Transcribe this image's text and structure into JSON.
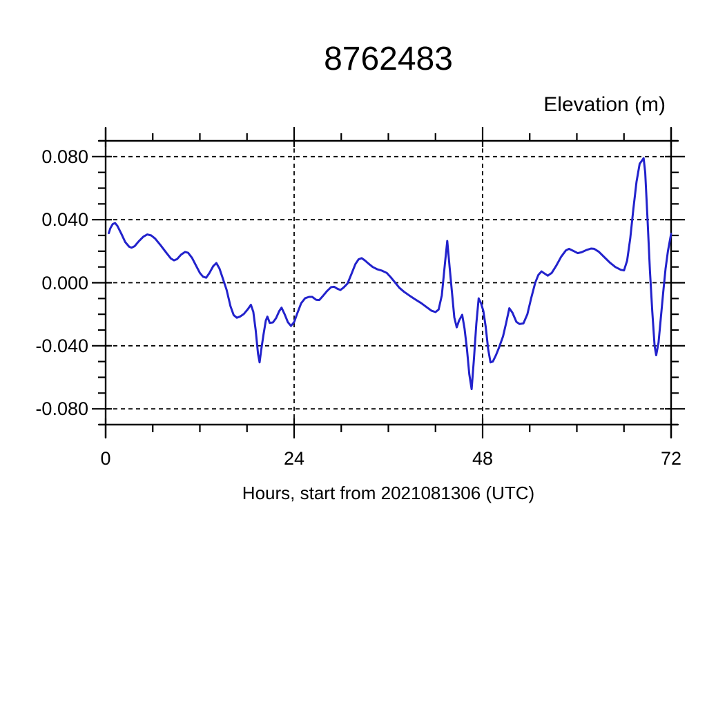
{
  "page": {
    "background_color": "#ffffff"
  },
  "chart": {
    "title": "8762483",
    "unit_label": "Elevation (m)",
    "xlabel": "Hours, start from 2021081306 (UTC)",
    "line_color": "#2222cc",
    "axis_color": "#000000",
    "xtick_labels": [
      "0",
      "24",
      "48",
      "72"
    ],
    "ytick_labels": [
      "0.080",
      "0.040",
      "0.000",
      "-0.040",
      "-0.080"
    ]
  },
  "chart_data": {
    "type": "line",
    "title": "8762483",
    "xlabel": "Hours, start from 2021081306 (UTC)",
    "ylabel": "Elevation (m)",
    "xlim": [
      0,
      72
    ],
    "ylim": [
      -0.09,
      0.09
    ],
    "xticks_major": [
      0,
      24,
      48,
      72
    ],
    "xtick_minor_interval": 6,
    "yticks_major": [
      0.08,
      0.04,
      0,
      -0.04,
      -0.08
    ],
    "ytick_minor_interval": 0.01,
    "grid": "dashed-at-major-ticks",
    "legend": "none",
    "series": [
      {
        "name": "elevation",
        "color": "#2222cc",
        "x": [
          0.4,
          0.6,
          0.9,
          1.2,
          1.5,
          2.0,
          2.5,
          3.0,
          3.3,
          3.7,
          4.2,
          4.8,
          5.3,
          5.8,
          6.3,
          7.0,
          7.7,
          8.3,
          8.7,
          9.1,
          9.6,
          10.1,
          10.5,
          11.0,
          11.5,
          12.0,
          12.4,
          12.8,
          13.2,
          13.7,
          14.1,
          14.5,
          14.9,
          15.4,
          15.9,
          16.3,
          16.7,
          17.1,
          17.6,
          18.1,
          18.5,
          18.8,
          19.1,
          19.4,
          19.6,
          19.8,
          20.1,
          20.4,
          20.6,
          20.9,
          21.3,
          21.7,
          22.1,
          22.4,
          22.8,
          23.2,
          23.6,
          24.0,
          24.4,
          24.9,
          25.4,
          25.9,
          26.3,
          26.8,
          27.2,
          27.7,
          28.2,
          28.7,
          29.1,
          29.5,
          29.9,
          30.3,
          30.8,
          31.3,
          31.8,
          32.2,
          32.6,
          33.0,
          33.5,
          34.0,
          34.6,
          35.2,
          35.8,
          36.3,
          36.8,
          37.4,
          38.0,
          38.7,
          39.4,
          40.2,
          40.9,
          41.5,
          42.0,
          42.4,
          42.8,
          43.2,
          43.5,
          43.8,
          44.1,
          44.4,
          44.7,
          45.0,
          45.4,
          45.7,
          46.0,
          46.3,
          46.6,
          46.9,
          47.2,
          47.5,
          47.8,
          48.1,
          48.4,
          48.7,
          49.0,
          49.3,
          49.7,
          50.1,
          50.6,
          51.0,
          51.4,
          51.8,
          52.3,
          52.7,
          53.2,
          53.7,
          54.2,
          54.7,
          55.1,
          55.5,
          55.9,
          56.3,
          56.8,
          57.4,
          58.0,
          58.6,
          59.0,
          59.5,
          60.1,
          60.6,
          61.2,
          61.8,
          62.2,
          62.8,
          63.5,
          64.2,
          64.9,
          65.6,
          66.0,
          66.4,
          66.8,
          67.2,
          67.6,
          68.0,
          68.3,
          68.5,
          68.7,
          69.0,
          69.3,
          69.6,
          69.9,
          70.1,
          70.4,
          70.7,
          71.0,
          71.3,
          71.6,
          72.0
        ],
        "y": [
          0.0315,
          0.0345,
          0.0372,
          0.0379,
          0.036,
          0.031,
          0.0258,
          0.0228,
          0.0222,
          0.0232,
          0.0262,
          0.0292,
          0.0306,
          0.03,
          0.028,
          0.0238,
          0.0192,
          0.0154,
          0.0142,
          0.015,
          0.0178,
          0.0195,
          0.019,
          0.0158,
          0.011,
          0.0062,
          0.0038,
          0.0032,
          0.006,
          0.0105,
          0.0125,
          0.009,
          0.003,
          -0.0045,
          -0.015,
          -0.0205,
          -0.0222,
          -0.0215,
          -0.0198,
          -0.0168,
          -0.014,
          -0.0185,
          -0.03,
          -0.045,
          -0.0505,
          -0.043,
          -0.033,
          -0.024,
          -0.0215,
          -0.0255,
          -0.0252,
          -0.0225,
          -0.018,
          -0.0158,
          -0.02,
          -0.025,
          -0.0274,
          -0.025,
          -0.0195,
          -0.013,
          -0.0098,
          -0.009,
          -0.009,
          -0.0108,
          -0.011,
          -0.0082,
          -0.0052,
          -0.0028,
          -0.0026,
          -0.0038,
          -0.0046,
          -0.003,
          -0.0005,
          0.0055,
          0.0118,
          0.0148,
          0.0156,
          0.0142,
          0.012,
          0.01,
          0.0085,
          0.0076,
          0.0062,
          0.0035,
          0.0005,
          -0.0032,
          -0.0058,
          -0.0082,
          -0.0105,
          -0.013,
          -0.0156,
          -0.0178,
          -0.0186,
          -0.017,
          -0.008,
          0.012,
          0.0265,
          0.01,
          -0.006,
          -0.022,
          -0.0283,
          -0.024,
          -0.0203,
          -0.029,
          -0.042,
          -0.058,
          -0.0675,
          -0.048,
          -0.026,
          -0.0099,
          -0.013,
          -0.018,
          -0.028,
          -0.042,
          -0.0505,
          -0.05,
          -0.046,
          -0.041,
          -0.034,
          -0.0255,
          -0.0162,
          -0.019,
          -0.0248,
          -0.0262,
          -0.0258,
          -0.02,
          -0.0095,
          0.0,
          0.005,
          0.0072,
          0.0058,
          0.0045,
          0.0062,
          0.011,
          0.0165,
          0.0205,
          0.0215,
          0.0203,
          0.0188,
          0.0193,
          0.0207,
          0.0217,
          0.0215,
          0.0196,
          0.0162,
          0.0128,
          0.01,
          0.0082,
          0.0078,
          0.014,
          0.028,
          0.047,
          0.064,
          0.0755,
          0.0775,
          0.079,
          0.07,
          0.04,
          0.008,
          -0.018,
          -0.04,
          -0.046,
          -0.038,
          -0.022,
          -0.006,
          0.009,
          0.02,
          0.031
        ]
      }
    ]
  }
}
